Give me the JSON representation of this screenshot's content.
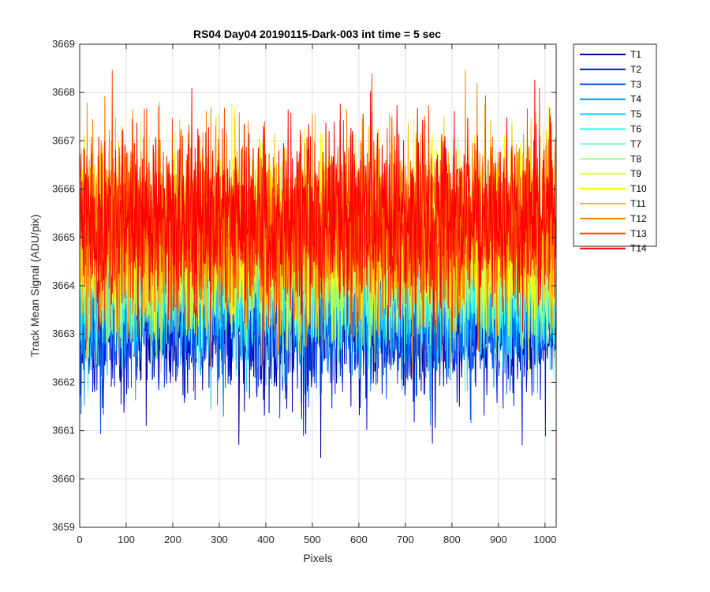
{
  "chart_data": {
    "type": "line",
    "title": "RS04 Day04 20190115-Dark-003 int time = 5 sec",
    "xlabel": "Pixels",
    "ylabel": "Track Mean Signal (ADU/pix)",
    "xlim": [
      0,
      1024
    ],
    "ylim": [
      3659,
      3669
    ],
    "xticks": [
      0,
      100,
      200,
      300,
      400,
      500,
      600,
      700,
      800,
      900,
      1000
    ],
    "yticks": [
      3659,
      3660,
      3661,
      3662,
      3663,
      3664,
      3665,
      3666,
      3667,
      3668,
      3669
    ],
    "grid": true,
    "legend_position": "outside-top-right",
    "n_points": 1024,
    "noise_note": "per-pixel values are dense noise around each track mean; estimated mean and amplitude given per series",
    "series": [
      {
        "name": "T1",
        "color": "#0000a8",
        "mean": 3663.2,
        "spread": 1.2
      },
      {
        "name": "T2",
        "color": "#0018d8",
        "mean": 3663.3,
        "spread": 1.2
      },
      {
        "name": "T3",
        "color": "#0050f0",
        "mean": 3663.5,
        "spread": 1.2
      },
      {
        "name": "T4",
        "color": "#0090ff",
        "mean": 3663.8,
        "spread": 1.3
      },
      {
        "name": "T5",
        "color": "#10c8ff",
        "mean": 3664.0,
        "spread": 1.3
      },
      {
        "name": "T6",
        "color": "#30f0f0",
        "mean": 3664.2,
        "spread": 1.3
      },
      {
        "name": "T7",
        "color": "#70ffc0",
        "mean": 3664.4,
        "spread": 1.3
      },
      {
        "name": "T8",
        "color": "#a0ff80",
        "mean": 3664.6,
        "spread": 1.3
      },
      {
        "name": "T9",
        "color": "#d0ff40",
        "mean": 3664.8,
        "spread": 1.4
      },
      {
        "name": "T10",
        "color": "#ffff00",
        "mean": 3665.1,
        "spread": 1.5
      },
      {
        "name": "T11",
        "color": "#ffbf00",
        "mean": 3665.2,
        "spread": 1.5
      },
      {
        "name": "T12",
        "color": "#ff7f00",
        "mean": 3665.3,
        "spread": 1.5
      },
      {
        "name": "T13",
        "color": "#ff4000",
        "mean": 3665.3,
        "spread": 1.5
      },
      {
        "name": "T14",
        "color": "#ff0000",
        "mean": 3665.4,
        "spread": 1.5
      }
    ]
  }
}
